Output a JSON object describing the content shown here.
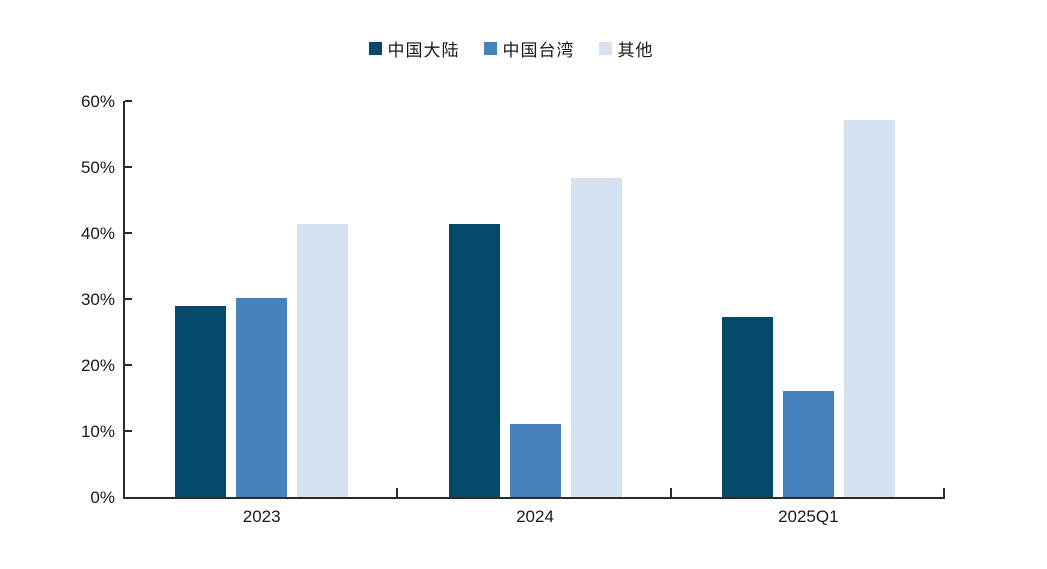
{
  "chart_data": {
    "type": "bar",
    "title": "",
    "xlabel": "",
    "ylabel": "",
    "categories": [
      "2023",
      "2024",
      "2025Q1"
    ],
    "series": [
      {
        "name": "中国大陆",
        "color": "#05496D",
        "values": [
          29.0,
          41.3,
          27.2
        ]
      },
      {
        "name": "中国台湾",
        "color": "#4682BD",
        "values": [
          30.2,
          11.1,
          16.0
        ]
      },
      {
        "name": "其他",
        "color": "#D5E3F1",
        "values": [
          41.4,
          48.4,
          57.1
        ]
      }
    ],
    "ylim": [
      0,
      60
    ],
    "ytick_step": 10,
    "ytick_labels": [
      "0%",
      "10%",
      "20%",
      "30%",
      "40%",
      "50%",
      "60%"
    ],
    "legend_position": "top",
    "grid": false,
    "axis_color": "#2b2b2b",
    "tick_style": "inside"
  }
}
